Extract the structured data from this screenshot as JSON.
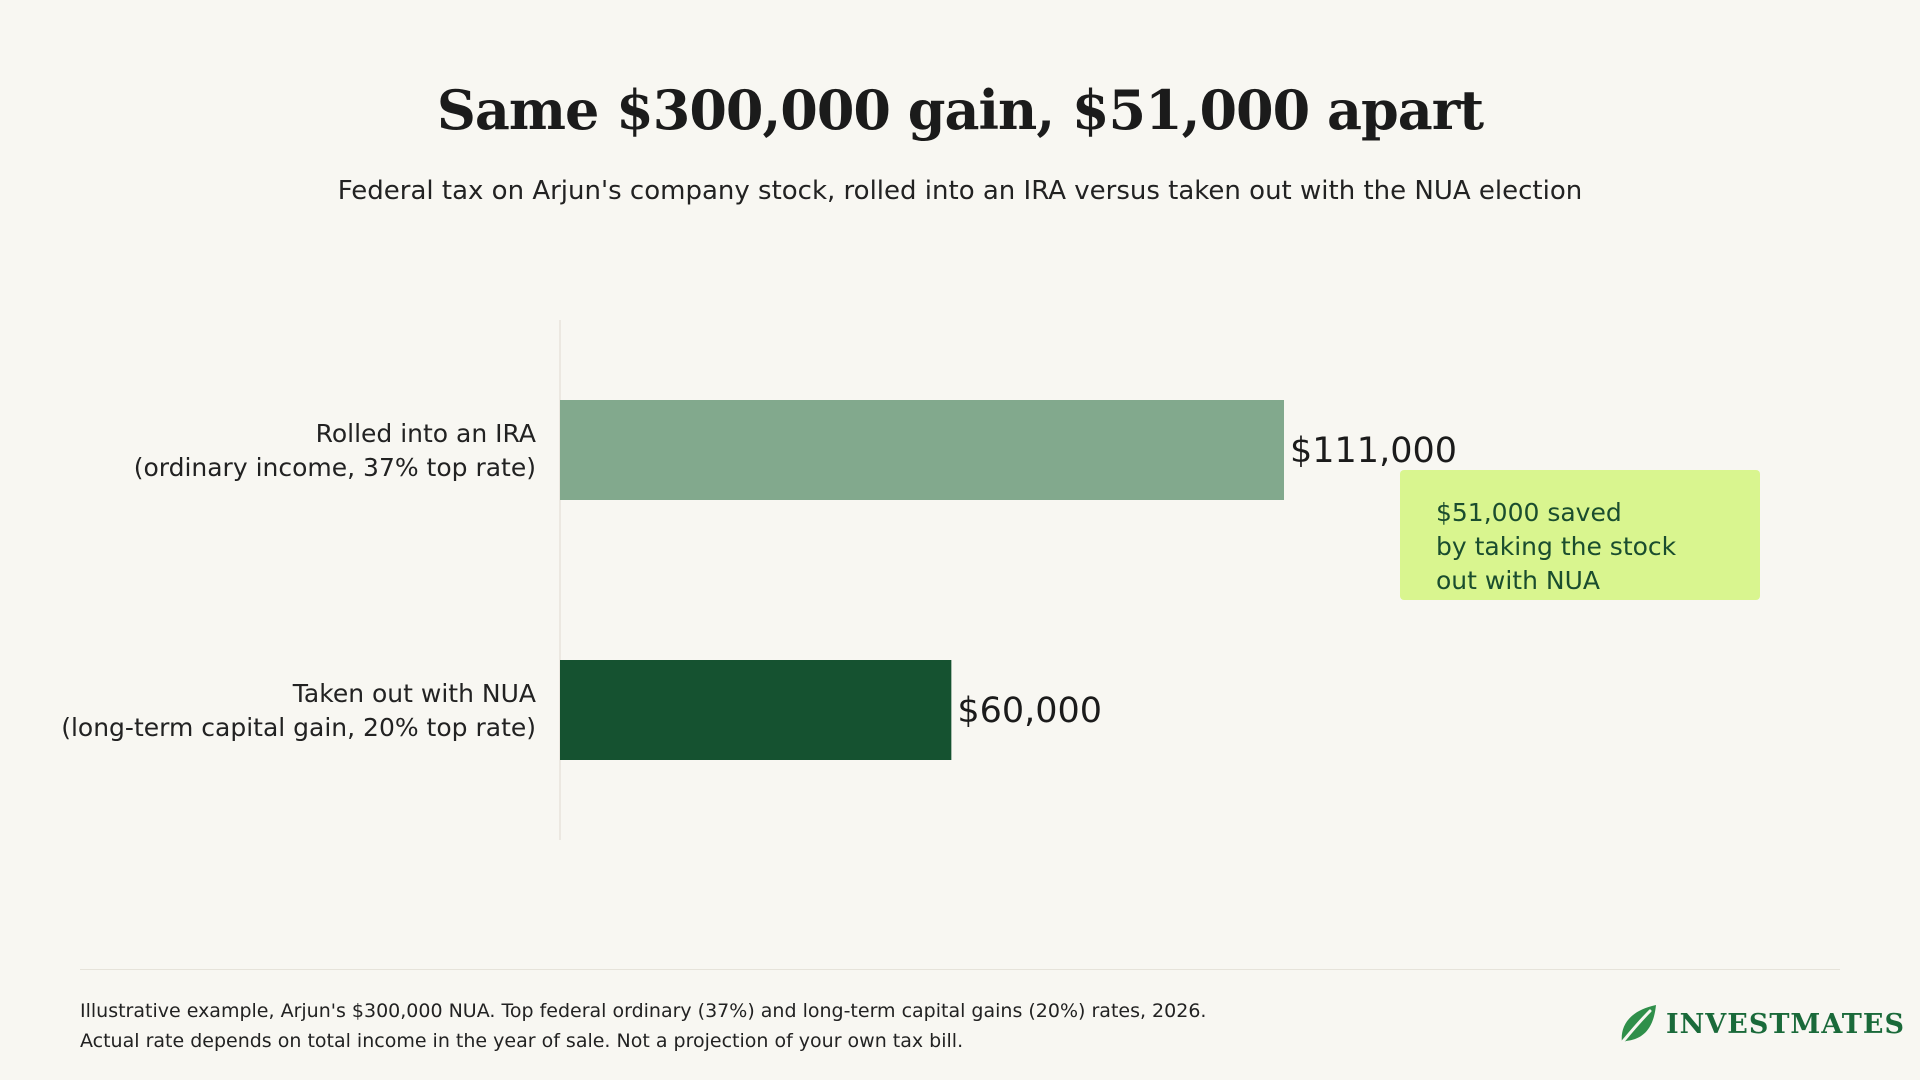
{
  "title": "Same $300,000 gain, $51,000 apart",
  "subtitle": "Federal tax on Arjun's company stock, rolled into an IRA versus taken out with the NUA election",
  "chart_data": {
    "type": "bar",
    "orientation": "horizontal",
    "categories": [
      [
        "Rolled into an IRA",
        "(ordinary income, 37% top rate)"
      ],
      [
        "Taken out with NUA",
        "(long-term capital gain, 20% top rate)"
      ]
    ],
    "values": [
      111000,
      60000
    ],
    "value_labels": [
      "$111,000",
      "$60,000"
    ],
    "colors": [
      "#82a98d",
      "#155230"
    ],
    "grid": false,
    "legend": "none"
  },
  "callout": {
    "lines": [
      "$51,000 saved",
      "by taking the stock",
      "out with NUA"
    ]
  },
  "footnote": {
    "lines": [
      "Illustrative example, Arjun's $300,000 NUA. Top federal ordinary (37%) and long-term capital gains (20%) rates, 2026.",
      "Actual rate depends on total income in the year of sale. Not a projection of your own tax bill."
    ]
  },
  "logo": {
    "text": "INVESTMATES",
    "icon": "leaf-icon"
  },
  "colors": {
    "background": "#f8f7f2",
    "accent": "#d9f58f",
    "brand": "#1a6a3a"
  }
}
